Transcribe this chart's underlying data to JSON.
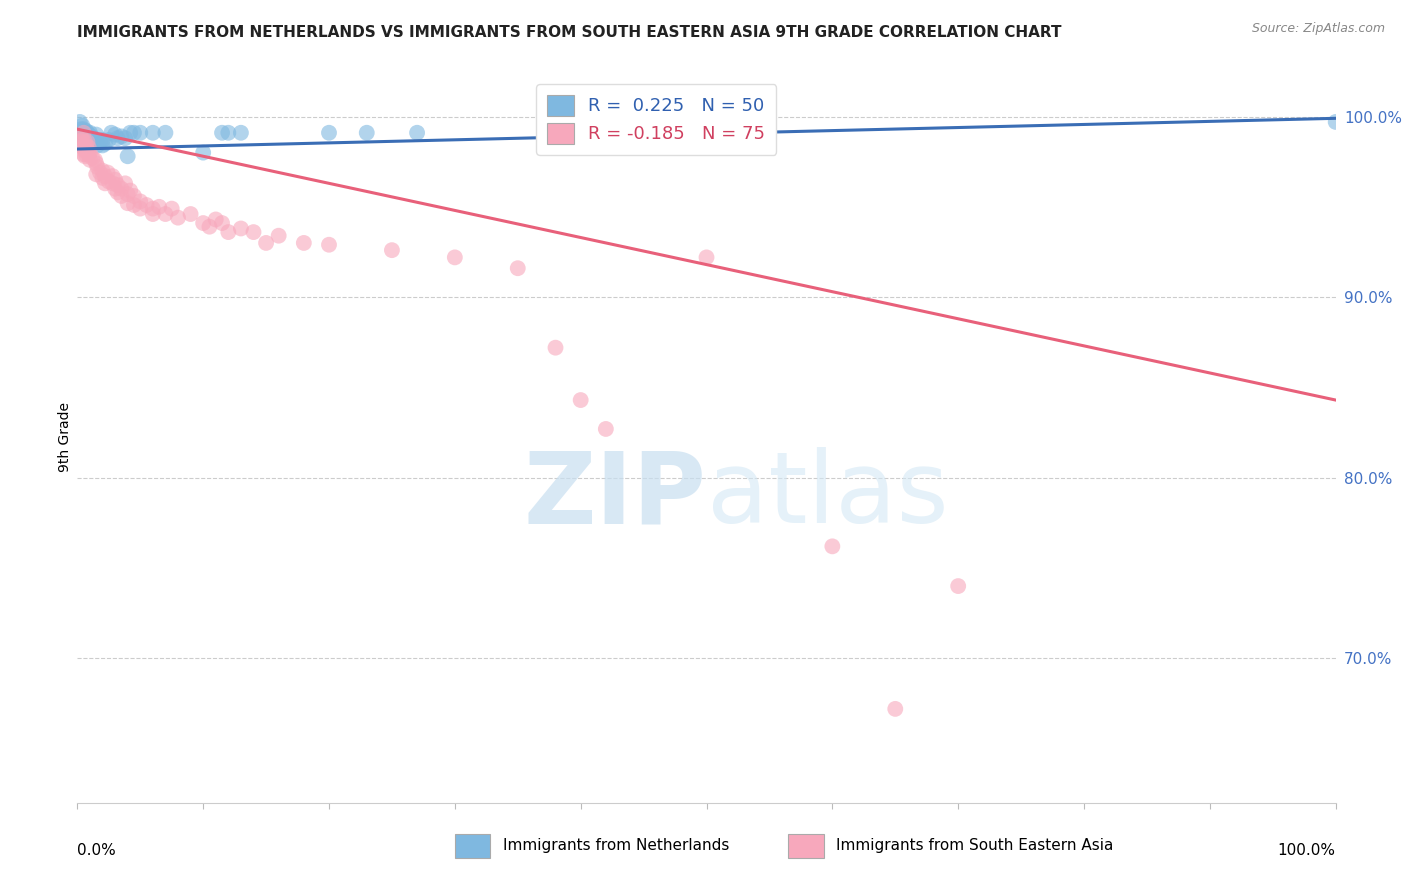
{
  "title": "IMMIGRANTS FROM NETHERLANDS VS IMMIGRANTS FROM SOUTH EASTERN ASIA 9TH GRADE CORRELATION CHART",
  "source": "Source: ZipAtlas.com",
  "ylabel": "9th Grade",
  "xlim": [
    0.0,
    1.0
  ],
  "ylim": [
    0.62,
    1.025
  ],
  "ytick_labels": [
    "70.0%",
    "80.0%",
    "90.0%",
    "100.0%"
  ],
  "ytick_values": [
    0.7,
    0.8,
    0.9,
    1.0
  ],
  "blue_color": "#7fb8e0",
  "pink_color": "#f7a8bc",
  "blue_line_color": "#3a6db5",
  "pink_line_color": "#e8607a",
  "blue_scatter": [
    [
      0.002,
      0.997
    ],
    [
      0.003,
      0.993
    ],
    [
      0.003,
      0.99
    ],
    [
      0.003,
      0.988
    ],
    [
      0.004,
      0.995
    ],
    [
      0.004,
      0.989
    ],
    [
      0.005,
      0.993
    ],
    [
      0.005,
      0.988
    ],
    [
      0.006,
      0.991
    ],
    [
      0.006,
      0.987
    ],
    [
      0.007,
      0.992
    ],
    [
      0.007,
      0.986
    ],
    [
      0.008,
      0.991
    ],
    [
      0.008,
      0.986
    ],
    [
      0.009,
      0.99
    ],
    [
      0.009,
      0.984
    ],
    [
      0.01,
      0.991
    ],
    [
      0.01,
      0.987
    ],
    [
      0.011,
      0.989
    ],
    [
      0.012,
      0.986
    ],
    [
      0.013,
      0.988
    ],
    [
      0.014,
      0.987
    ],
    [
      0.015,
      0.99
    ],
    [
      0.015,
      0.986
    ],
    [
      0.016,
      0.984
    ],
    [
      0.018,
      0.986
    ],
    [
      0.02,
      0.987
    ],
    [
      0.02,
      0.984
    ],
    [
      0.022,
      0.985
    ],
    [
      0.025,
      0.987
    ],
    [
      0.027,
      0.991
    ],
    [
      0.03,
      0.99
    ],
    [
      0.032,
      0.988
    ],
    [
      0.035,
      0.989
    ],
    [
      0.038,
      0.988
    ],
    [
      0.04,
      0.978
    ],
    [
      0.042,
      0.991
    ],
    [
      0.045,
      0.991
    ],
    [
      0.05,
      0.991
    ],
    [
      0.06,
      0.991
    ],
    [
      0.07,
      0.991
    ],
    [
      0.1,
      0.98
    ],
    [
      0.115,
      0.991
    ],
    [
      0.12,
      0.991
    ],
    [
      0.13,
      0.991
    ],
    [
      0.2,
      0.991
    ],
    [
      0.23,
      0.991
    ],
    [
      0.27,
      0.991
    ],
    [
      0.42,
      0.991
    ],
    [
      1.0,
      0.997
    ]
  ],
  "pink_scatter": [
    [
      0.003,
      0.989
    ],
    [
      0.003,
      0.986
    ],
    [
      0.004,
      0.987
    ],
    [
      0.004,
      0.983
    ],
    [
      0.005,
      0.991
    ],
    [
      0.005,
      0.983
    ],
    [
      0.005,
      0.979
    ],
    [
      0.006,
      0.986
    ],
    [
      0.006,
      0.981
    ],
    [
      0.006,
      0.978
    ],
    [
      0.007,
      0.984
    ],
    [
      0.007,
      0.979
    ],
    [
      0.008,
      0.986
    ],
    [
      0.008,
      0.981
    ],
    [
      0.009,
      0.983
    ],
    [
      0.009,
      0.979
    ],
    [
      0.01,
      0.98
    ],
    [
      0.01,
      0.976
    ],
    [
      0.012,
      0.977
    ],
    [
      0.014,
      0.976
    ],
    [
      0.015,
      0.974
    ],
    [
      0.015,
      0.968
    ],
    [
      0.016,
      0.972
    ],
    [
      0.018,
      0.969
    ],
    [
      0.02,
      0.97
    ],
    [
      0.02,
      0.966
    ],
    [
      0.022,
      0.967
    ],
    [
      0.022,
      0.963
    ],
    [
      0.024,
      0.969
    ],
    [
      0.025,
      0.964
    ],
    [
      0.028,
      0.967
    ],
    [
      0.028,
      0.963
    ],
    [
      0.03,
      0.965
    ],
    [
      0.03,
      0.96
    ],
    [
      0.032,
      0.962
    ],
    [
      0.032,
      0.958
    ],
    [
      0.035,
      0.96
    ],
    [
      0.035,
      0.956
    ],
    [
      0.038,
      0.963
    ],
    [
      0.04,
      0.957
    ],
    [
      0.04,
      0.952
    ],
    [
      0.042,
      0.959
    ],
    [
      0.045,
      0.956
    ],
    [
      0.045,
      0.951
    ],
    [
      0.05,
      0.953
    ],
    [
      0.05,
      0.949
    ],
    [
      0.055,
      0.951
    ],
    [
      0.06,
      0.949
    ],
    [
      0.06,
      0.946
    ],
    [
      0.065,
      0.95
    ],
    [
      0.07,
      0.946
    ],
    [
      0.075,
      0.949
    ],
    [
      0.08,
      0.944
    ],
    [
      0.09,
      0.946
    ],
    [
      0.1,
      0.941
    ],
    [
      0.105,
      0.939
    ],
    [
      0.11,
      0.943
    ],
    [
      0.115,
      0.941
    ],
    [
      0.12,
      0.936
    ],
    [
      0.13,
      0.938
    ],
    [
      0.14,
      0.936
    ],
    [
      0.15,
      0.93
    ],
    [
      0.16,
      0.934
    ],
    [
      0.18,
      0.93
    ],
    [
      0.2,
      0.929
    ],
    [
      0.25,
      0.926
    ],
    [
      0.3,
      0.922
    ],
    [
      0.35,
      0.916
    ],
    [
      0.38,
      0.872
    ],
    [
      0.4,
      0.843
    ],
    [
      0.42,
      0.827
    ],
    [
      0.5,
      0.922
    ],
    [
      0.6,
      0.762
    ],
    [
      0.65,
      0.672
    ],
    [
      0.7,
      0.74
    ]
  ],
  "blue_line_y_start": 0.982,
  "blue_line_y_end": 0.999,
  "pink_line_y_start": 0.993,
  "pink_line_y_end": 0.843
}
